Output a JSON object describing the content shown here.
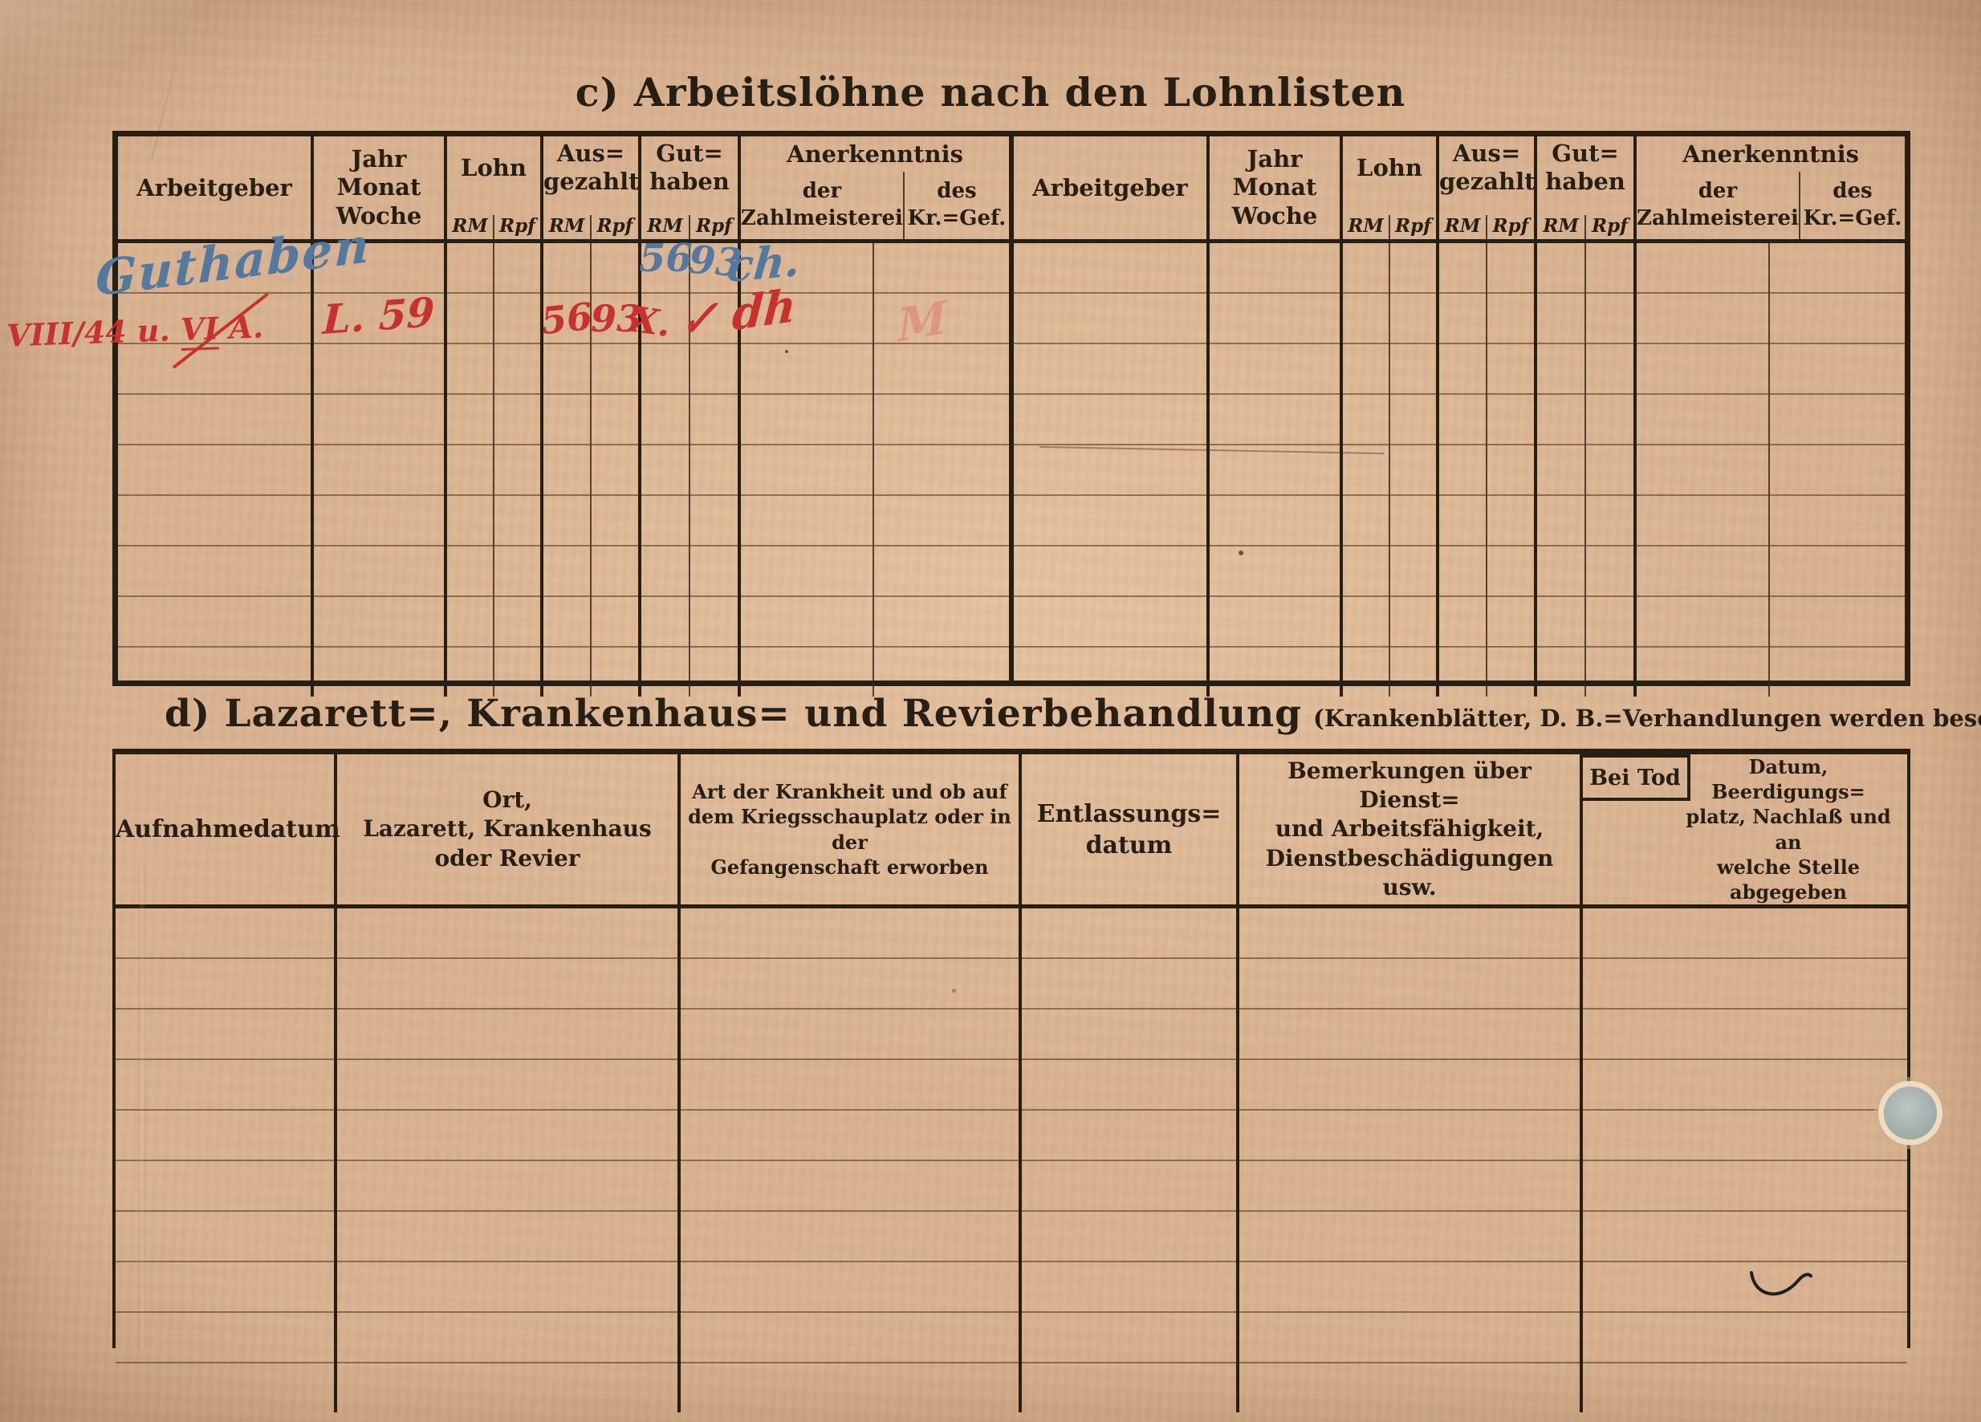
{
  "page": {
    "title_c": "c) Arbeitslöhne nach den Lohnlisten",
    "title_d": "d) Lazarett=, Krankenhaus= und Revierbehandlung",
    "title_d_note": "(Krankenblätter, D. B.=Verhandlungen werden besonders geführt)"
  },
  "colors": {
    "paper": "#d8b291",
    "ink": "#271f14",
    "ink_red": "#c8322e",
    "ink_blue": "#53799f",
    "ink_pink_faint": "#e07872",
    "rule_brown": "#5a3f22"
  },
  "wage_table": {
    "headers": {
      "employer": "Arbeitgeber",
      "period_lines": [
        "Jahr",
        "Monat",
        "Woche"
      ],
      "wage": "Lohn",
      "paid_lines": [
        "Aus=",
        "gezahlt"
      ],
      "credit_lines": [
        "Gut=",
        "haben"
      ],
      "acknowledgement": "Anerkenntnis",
      "ack_paymaster_lines": [
        "der",
        "Zahlmeisterei"
      ],
      "ack_prisoner_lines": [
        "des",
        "Kr.=Gef."
      ],
      "currency_rm": "RM",
      "currency_rpf": "Rpf"
    },
    "row_count_per_half": 9,
    "entries": {
      "row1": {
        "ink": "blue",
        "employer_note": "Guthaben",
        "credit_rm": "56",
        "credit_rpf": "93",
        "paymaster_sign": "ch."
      },
      "row2": {
        "ink": "red",
        "margin_prefix": "VIII/44 u.",
        "margin_vi": "VI",
        "margin_suffix": "A.",
        "period": "L. 59",
        "paid_rm": "56",
        "paid_rpf": "93",
        "credit_mark": "X.",
        "paymaster_sign": "✓ dh",
        "kr_gef_mark": "M"
      }
    }
  },
  "treatment_table": {
    "headers": {
      "admission": "Aufnahmedatum",
      "place_lines": [
        "Ort,",
        "Lazarett, Krankenhaus",
        "oder Revier"
      ],
      "illness_lines": [
        "Art der Krankheit und ob auf",
        "dem Kriegsschauplatz oder in der",
        "Gefangenschaft erworben"
      ],
      "discharge_lines": [
        "Entlassungs=",
        "datum"
      ],
      "remarks_lines": [
        "Bemerkungen über Dienst=",
        "und Arbeitsfähigkeit,",
        "Dienstbeschädigungen usw."
      ],
      "death_box_label": "Bei Tod",
      "death_lines": [
        "Datum, Beerdigungs=",
        "platz, Nachlaß und an",
        "welche Stelle abgegeben"
      ]
    },
    "row_count": 10,
    "entries": []
  }
}
